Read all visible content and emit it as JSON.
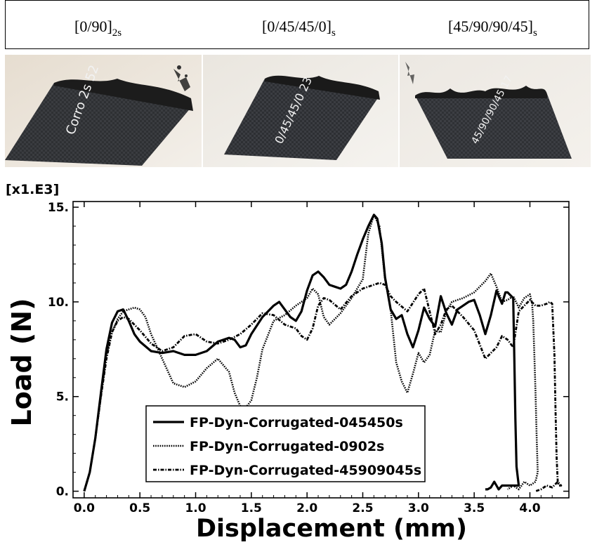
{
  "header": {
    "layups": [
      {
        "main": "[0/90]",
        "sub": "2s"
      },
      {
        "main": "[0/45/45/0]",
        "sub": "s"
      },
      {
        "main": "[45/90/90/45]",
        "sub": "s"
      }
    ]
  },
  "photos": [
    {
      "handwriting": "Corro 2s 52"
    },
    {
      "handwriting": "0/45/45/0 23"
    },
    {
      "handwriting": "45/90/90/45 17"
    }
  ],
  "chart_data": {
    "type": "line",
    "xlabel": "Displacement (mm)",
    "ylabel": "Load (N)",
    "y_multiplier": "[x1.E3]",
    "xlim": [
      -0.1,
      4.35
    ],
    "ylim": [
      -0.35,
      15.3
    ],
    "xticks": [
      0.0,
      0.5,
      1.0,
      1.5,
      2.0,
      2.5,
      3.0,
      3.5,
      4.0
    ],
    "xtick_labels": [
      "0.0",
      "0.5",
      "1.0",
      "1.5",
      "2.0",
      "2.5",
      "3.0",
      "3.5",
      "4.0"
    ],
    "yticks": [
      0,
      5,
      10,
      15
    ],
    "ytick_labels": [
      "0.",
      "5.",
      "10.",
      "15."
    ],
    "grid": false,
    "legend_position": "lower-center",
    "series": [
      {
        "name": "FP-Dyn-Corrugated-045450s",
        "style": "solid",
        "x": [
          0.0,
          0.05,
          0.1,
          0.15,
          0.2,
          0.25,
          0.3,
          0.35,
          0.4,
          0.45,
          0.5,
          0.6,
          0.7,
          0.8,
          0.9,
          1.0,
          1.1,
          1.2,
          1.3,
          1.35,
          1.4,
          1.45,
          1.5,
          1.6,
          1.7,
          1.75,
          1.8,
          1.85,
          1.9,
          1.95,
          2.0,
          2.05,
          2.1,
          2.15,
          2.2,
          2.25,
          2.3,
          2.35,
          2.4,
          2.45,
          2.5,
          2.55,
          2.6,
          2.63,
          2.67,
          2.7,
          2.75,
          2.8,
          2.85,
          2.9,
          2.95,
          3.0,
          3.05,
          3.1,
          3.15,
          3.2,
          3.25,
          3.3,
          3.35,
          3.4,
          3.45,
          3.5,
          3.55,
          3.6,
          3.65,
          3.7,
          3.72,
          3.75,
          3.78,
          3.8,
          3.85,
          3.86,
          3.87,
          3.88,
          3.9,
          3.85,
          3.8,
          3.75,
          3.72,
          3.7,
          3.68,
          3.65,
          3.62,
          3.6
        ],
        "y": [
          0.0,
          1.0,
          2.8,
          5.2,
          7.5,
          8.9,
          9.5,
          9.6,
          9.0,
          8.3,
          7.9,
          7.4,
          7.3,
          7.4,
          7.2,
          7.2,
          7.4,
          7.9,
          8.1,
          8.0,
          7.6,
          7.7,
          8.3,
          9.2,
          9.8,
          10.0,
          9.6,
          9.2,
          9.0,
          9.5,
          10.6,
          11.4,
          11.6,
          11.3,
          10.9,
          10.8,
          10.7,
          10.9,
          11.6,
          12.5,
          13.3,
          14.0,
          14.6,
          14.4,
          13.1,
          11.3,
          9.6,
          9.1,
          9.3,
          8.3,
          7.6,
          8.5,
          9.7,
          9.1,
          8.7,
          10.3,
          9.4,
          8.8,
          9.6,
          9.8,
          10.0,
          10.1,
          9.3,
          8.3,
          9.3,
          10.6,
          10.3,
          9.9,
          10.5,
          10.5,
          10.2,
          7.0,
          3.8,
          1.3,
          0.3,
          0.3,
          0.3,
          0.3,
          0.1,
          0.3,
          0.5,
          0.2,
          0.1,
          0.1
        ]
      },
      {
        "name": "FP-Dyn-Corrugated-0902s",
        "style": "dotted",
        "x": [
          0.0,
          0.05,
          0.1,
          0.15,
          0.2,
          0.25,
          0.3,
          0.35,
          0.4,
          0.45,
          0.5,
          0.55,
          0.6,
          0.7,
          0.8,
          0.9,
          1.0,
          1.1,
          1.2,
          1.3,
          1.35,
          1.4,
          1.45,
          1.5,
          1.55,
          1.6,
          1.7,
          1.8,
          1.9,
          2.0,
          2.05,
          2.1,
          2.15,
          2.2,
          2.3,
          2.4,
          2.5,
          2.55,
          2.6,
          2.65,
          2.7,
          2.75,
          2.8,
          2.85,
          2.9,
          2.95,
          3.0,
          3.05,
          3.1,
          3.15,
          3.2,
          3.25,
          3.3,
          3.4,
          3.5,
          3.6,
          3.65,
          3.7,
          3.75,
          3.8,
          3.85,
          3.9,
          3.95,
          4.0,
          4.02,
          4.03,
          4.04,
          4.05,
          4.06,
          4.07,
          4.05,
          4.0,
          3.95,
          3.9,
          3.85,
          3.8
        ],
        "y": [
          0.0,
          1.0,
          2.8,
          5.0,
          7.2,
          8.4,
          9.1,
          9.5,
          9.6,
          9.7,
          9.6,
          9.2,
          8.3,
          7.0,
          5.7,
          5.5,
          5.8,
          6.5,
          7.0,
          6.3,
          5.2,
          4.5,
          4.4,
          4.8,
          6.0,
          7.5,
          9.0,
          9.3,
          9.8,
          10.2,
          10.7,
          10.4,
          9.2,
          8.8,
          9.4,
          10.2,
          11.2,
          13.6,
          14.6,
          14.0,
          11.2,
          9.6,
          6.8,
          5.8,
          5.2,
          6.2,
          7.3,
          6.8,
          7.2,
          8.5,
          8.4,
          9.5,
          10.0,
          10.2,
          10.5,
          11.1,
          11.5,
          10.8,
          10.0,
          10.1,
          10.3,
          9.7,
          10.2,
          10.4,
          9.9,
          9.0,
          7.2,
          5.3,
          3.0,
          1.0,
          0.5,
          0.3,
          0.5,
          0.1,
          0.3,
          0.1
        ]
      },
      {
        "name": "FP-Dyn-Corrugated-45909045s",
        "style": "dashdot",
        "x": [
          0.0,
          0.05,
          0.1,
          0.15,
          0.2,
          0.25,
          0.3,
          0.35,
          0.4,
          0.5,
          0.6,
          0.7,
          0.8,
          0.9,
          1.0,
          1.1,
          1.2,
          1.3,
          1.4,
          1.5,
          1.6,
          1.7,
          1.8,
          1.9,
          1.95,
          2.0,
          2.05,
          2.1,
          2.15,
          2.2,
          2.3,
          2.4,
          2.5,
          2.6,
          2.65,
          2.7,
          2.75,
          2.8,
          2.9,
          3.0,
          3.05,
          3.1,
          3.15,
          3.2,
          3.25,
          3.3,
          3.4,
          3.5,
          3.6,
          3.7,
          3.75,
          3.8,
          3.85,
          3.9,
          3.95,
          4.0,
          4.05,
          4.1,
          4.15,
          4.18,
          4.2,
          4.22,
          4.23,
          4.24,
          4.25,
          4.26,
          4.27,
          4.28,
          4.25,
          4.2,
          4.15,
          4.1,
          4.05
        ],
        "y": [
          0.0,
          1.0,
          2.8,
          5.0,
          7.0,
          8.4,
          9.0,
          9.2,
          9.1,
          8.5,
          7.8,
          7.4,
          7.6,
          8.2,
          8.3,
          7.9,
          7.8,
          8.0,
          8.3,
          8.8,
          9.4,
          9.3,
          8.8,
          8.6,
          8.2,
          8.0,
          8.6,
          9.8,
          10.2,
          10.1,
          9.6,
          10.3,
          10.7,
          10.9,
          11.0,
          10.9,
          10.3,
          10.0,
          9.5,
          10.4,
          10.7,
          9.5,
          8.3,
          8.8,
          9.6,
          9.8,
          9.2,
          8.5,
          7.0,
          7.6,
          8.2,
          8.0,
          7.6,
          9.5,
          9.8,
          10.1,
          9.8,
          9.8,
          9.9,
          10.0,
          9.9,
          7.2,
          4.2,
          1.8,
          0.5,
          0.3,
          0.3,
          0.3,
          0.5,
          0.2,
          0.3,
          0.1,
          0.0
        ]
      }
    ]
  }
}
